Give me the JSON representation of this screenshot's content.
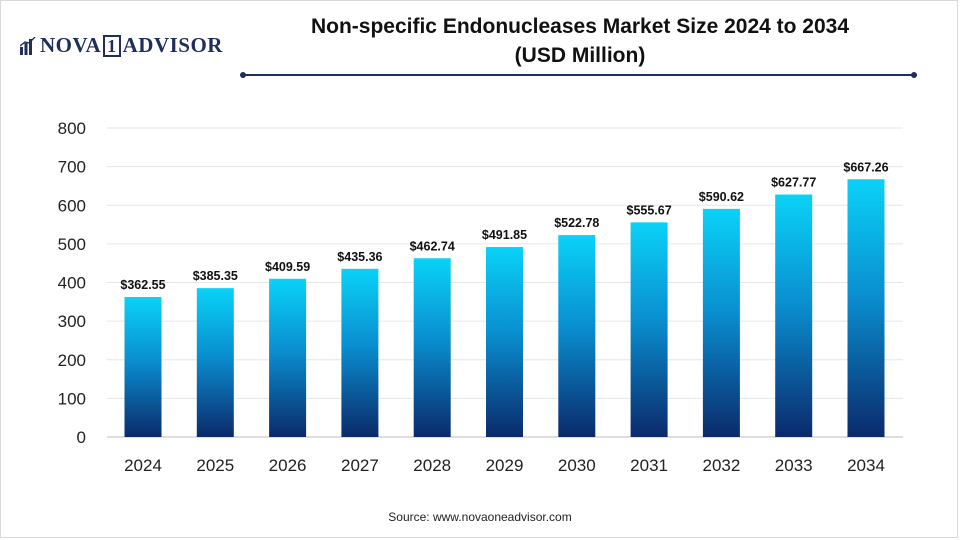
{
  "logo": {
    "text": "NOVA",
    "mark_digit": "1",
    "text2": "ADVISOR"
  },
  "title_line1": "Non-specific Endonucleases Market Size 2024 to 2034",
  "title_line2": "(USD Million)",
  "source": "Source: www.novaoneadvisor.com",
  "colors": {
    "bar_top": "#0ad2f7",
    "bar_bottom": "#0b2a6b",
    "rule": "#1f2f5c",
    "grid": "#e6e6e6"
  },
  "chart_data": {
    "type": "bar",
    "title": "Non-specific Endonucleases Market Size 2024 to 2034 (USD Million)",
    "categories": [
      "2024",
      "2025",
      "2026",
      "2027",
      "2028",
      "2029",
      "2030",
      "2031",
      "2032",
      "2033",
      "2034"
    ],
    "values": [
      362.55,
      385.35,
      409.59,
      435.36,
      462.74,
      491.85,
      522.78,
      555.67,
      590.62,
      627.77,
      667.26
    ],
    "data_labels": [
      "$362.55",
      "$385.35",
      "$409.59",
      "$435.36",
      "$462.74",
      "$491.85",
      "$522.78",
      "$555.67",
      "$590.62",
      "$627.77",
      "$667.26"
    ],
    "xlabel": "",
    "ylabel": "",
    "ylim": [
      0,
      800
    ],
    "yticks": [
      0,
      100,
      200,
      300,
      400,
      500,
      600,
      700,
      800
    ],
    "grid": true,
    "legend": "none"
  }
}
